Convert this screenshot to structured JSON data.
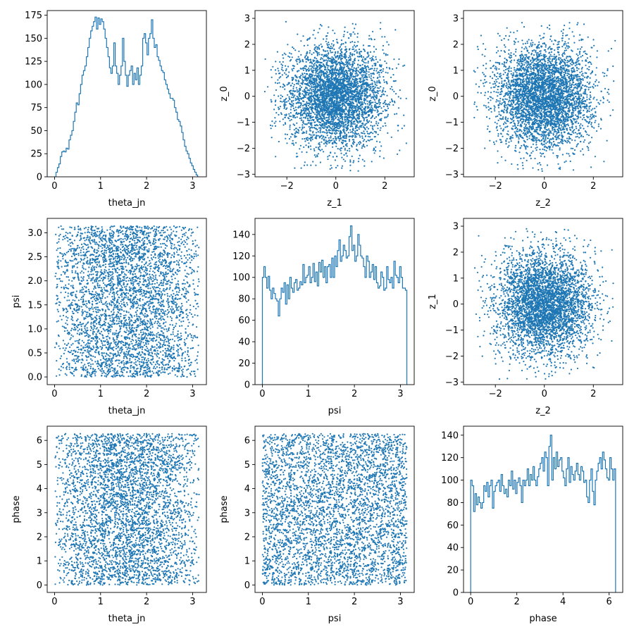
{
  "chart_data": [
    {
      "type": "histogram",
      "xlabel": "theta_jn",
      "ylabel": "",
      "xlim": [
        -0.16,
        3.3
      ],
      "ylim": [
        0,
        180
      ],
      "xticks": [
        0,
        1,
        2,
        3
      ],
      "yticks": [
        0,
        25,
        50,
        75,
        100,
        125,
        150,
        175
      ],
      "x_range": [
        0.0,
        3.14
      ],
      "bins": 100,
      "counts": [
        0,
        5,
        10,
        14,
        22,
        27,
        28,
        27,
        31,
        30,
        40,
        45,
        50,
        60,
        70,
        80,
        78,
        90,
        100,
        110,
        115,
        120,
        130,
        140,
        150,
        158,
        163,
        168,
        173,
        160,
        172,
        165,
        171,
        168,
        160,
        150,
        140,
        130,
        118,
        112,
        120,
        145,
        120,
        112,
        100,
        110,
        120,
        150,
        125,
        110,
        98,
        110,
        115,
        120,
        100,
        112,
        105,
        118,
        100,
        110,
        120,
        150,
        155,
        145,
        132,
        150,
        155,
        170,
        150,
        140,
        143,
        130,
        126,
        120,
        115,
        113,
        105,
        100,
        95,
        90,
        85,
        85,
        83,
        75,
        70,
        62,
        60,
        55,
        48,
        40,
        33,
        28,
        25,
        20,
        15,
        12,
        8,
        5,
        2,
        0
      ]
    },
    {
      "type": "scatter",
      "xlabel": "z_1",
      "ylabel": "z_0",
      "xlim": [
        -3.3,
        3.2
      ],
      "ylim": [
        -3.1,
        3.3
      ],
      "xticks": [
        -2,
        0,
        2
      ],
      "yticks": [
        -3,
        -2,
        -1,
        0,
        1,
        2,
        3
      ],
      "distribution": "gaussian",
      "n_points": 4000,
      "x_mean": 0,
      "x_std": 1,
      "y_mean": 0,
      "y_std": 1,
      "clip": 2.9
    },
    {
      "type": "scatter",
      "xlabel": "z_2",
      "ylabel": "z_0",
      "xlim": [
        -3.3,
        3.2
      ],
      "ylim": [
        -3.1,
        3.3
      ],
      "xticks": [
        -2,
        0,
        2
      ],
      "yticks": [
        -3,
        -2,
        -1,
        0,
        1,
        2,
        3
      ],
      "distribution": "gaussian",
      "n_points": 4000,
      "x_mean": 0,
      "x_std": 1,
      "y_mean": 0,
      "y_std": 1,
      "clip": 2.9
    },
    {
      "type": "scatter",
      "xlabel": "theta_jn",
      "ylabel": "psi",
      "xlim": [
        -0.16,
        3.3
      ],
      "ylim": [
        -0.16,
        3.3
      ],
      "xticks": [
        0,
        1,
        2,
        3
      ],
      "yticks": [
        0.0,
        0.5,
        1.0,
        1.5,
        2.0,
        2.5,
        3.0
      ],
      "distribution": "bimodal_uniform",
      "n_points": 4000,
      "x_range": [
        0,
        3.14
      ],
      "y_range": [
        0,
        3.14
      ]
    },
    {
      "type": "histogram",
      "xlabel": "psi",
      "ylabel": "",
      "xlim": [
        -0.16,
        3.3
      ],
      "ylim": [
        0,
        155
      ],
      "xticks": [
        0,
        1,
        2,
        3
      ],
      "yticks": [
        0,
        20,
        40,
        60,
        80,
        100,
        120,
        140
      ],
      "x_range": [
        0.0,
        3.14
      ],
      "bins": 100,
      "counts": [
        100,
        110,
        100,
        90,
        101,
        88,
        80,
        90,
        85,
        80,
        78,
        64,
        80,
        90,
        86,
        95,
        75,
        93,
        80,
        100,
        90,
        86,
        95,
        98,
        88,
        90,
        96,
        93,
        112,
        95,
        100,
        102,
        110,
        95,
        100,
        113,
        96,
        105,
        92,
        114,
        105,
        116,
        100,
        110,
        95,
        110,
        112,
        100,
        118,
        100,
        120,
        110,
        125,
        135,
        115,
        120,
        130,
        125,
        118,
        120,
        138,
        148,
        125,
        130,
        115,
        120,
        140,
        130,
        120,
        118,
        110,
        100,
        120,
        115,
        100,
        105,
        112,
        98,
        110,
        95,
        90,
        92,
        105,
        100,
        88,
        90,
        110,
        98,
        95,
        100,
        90,
        115,
        102,
        100,
        95,
        110,
        100,
        90,
        90,
        88
      ]
    },
    {
      "type": "scatter",
      "xlabel": "z_2",
      "ylabel": "z_1",
      "xlim": [
        -3.3,
        3.2
      ],
      "ylim": [
        -3.1,
        3.3
      ],
      "xticks": [
        -2,
        0,
        2
      ],
      "yticks": [
        -3,
        -2,
        -1,
        0,
        1,
        2,
        3
      ],
      "distribution": "gaussian",
      "n_points": 4000,
      "x_mean": 0,
      "x_std": 1,
      "y_mean": 0,
      "y_std": 1,
      "clip": 2.9
    },
    {
      "type": "scatter",
      "xlabel": "theta_jn",
      "ylabel": "phase",
      "xlim": [
        -0.16,
        3.3
      ],
      "ylim": [
        -0.31,
        6.59
      ],
      "xticks": [
        0,
        1,
        2,
        3
      ],
      "yticks": [
        0,
        1,
        2,
        3,
        4,
        5,
        6
      ],
      "distribution": "bimodal_uniform",
      "n_points": 4000,
      "x_range": [
        0,
        3.14
      ],
      "y_range": [
        0,
        6.28
      ]
    },
    {
      "type": "scatter",
      "xlabel": "psi",
      "ylabel": "phase",
      "xlim": [
        -0.16,
        3.3
      ],
      "ylim": [
        -0.31,
        6.59
      ],
      "xticks": [
        0,
        1,
        2,
        3
      ],
      "yticks": [
        0,
        1,
        2,
        3,
        4,
        5,
        6
      ],
      "distribution": "uniform",
      "n_points": 4000,
      "x_range": [
        0,
        3.14
      ],
      "y_range": [
        0,
        6.28
      ]
    },
    {
      "type": "histogram",
      "xlabel": "phase",
      "ylabel": "",
      "xlim": [
        -0.31,
        6.59
      ],
      "ylim": [
        0,
        148
      ],
      "xticks": [
        0,
        2,
        4,
        6
      ],
      "yticks": [
        0,
        20,
        40,
        60,
        80,
        100,
        120,
        140
      ],
      "x_range": [
        0.0,
        6.28
      ],
      "bins": 100,
      "counts": [
        100,
        95,
        72,
        88,
        78,
        85,
        80,
        75,
        80,
        95,
        90,
        98,
        85,
        95,
        100,
        75,
        90,
        95,
        98,
        100,
        90,
        105,
        95,
        88,
        92,
        85,
        100,
        95,
        108,
        92,
        100,
        88,
        98,
        102,
        95,
        80,
        100,
        95,
        100,
        110,
        95,
        105,
        100,
        112,
        100,
        95,
        103,
        110,
        115,
        120,
        108,
        125,
        120,
        95,
        130,
        140,
        100,
        120,
        110,
        125,
        112,
        118,
        120,
        108,
        102,
        95,
        110,
        120,
        98,
        112,
        105,
        100,
        108,
        115,
        105,
        100,
        112,
        108,
        98,
        100,
        85,
        80,
        100,
        110,
        90,
        78,
        100,
        108,
        115,
        120,
        110,
        125,
        118,
        110,
        102,
        100,
        120,
        110,
        100,
        110
      ]
    }
  ],
  "colors": {
    "series": "#1f77b4",
    "axes": "#000000",
    "background": "#ffffff"
  }
}
